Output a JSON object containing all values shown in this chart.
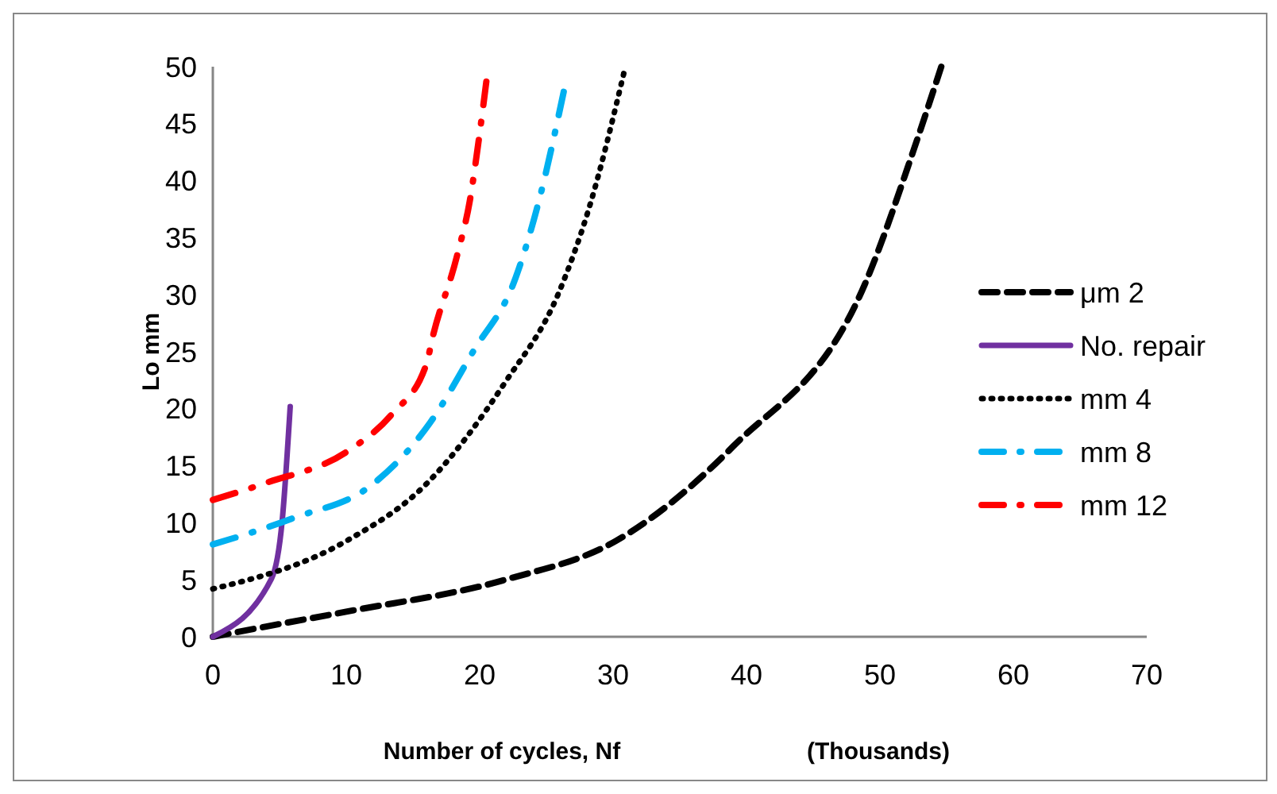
{
  "chart_data": {
    "type": "line",
    "xlabel": "Number of cycles, Nf",
    "ylabel": "Lo mm",
    "annotations": [
      "(Thousands)"
    ],
    "xlim": [
      0,
      70
    ],
    "xticks": [
      0,
      10,
      20,
      30,
      40,
      50,
      60,
      70
    ],
    "ylim": [
      0,
      50
    ],
    "yticks": [
      0,
      5,
      10,
      15,
      20,
      25,
      30,
      35,
      40,
      45,
      50
    ],
    "grid": false,
    "legend": "right",
    "marker": "none",
    "series": [
      {
        "name": "μm 2",
        "color": "#000000",
        "line_style": "dashed",
        "x": [
          0,
          4,
          10,
          21.9,
          30.2,
          39,
          48.9,
          52.5,
          54.6
        ],
        "values": [
          0,
          0.9,
          2.2,
          5,
          8.4,
          16.7,
          31,
          42.6,
          50
        ]
      },
      {
        "name": "No. repair",
        "color": "#7030a0",
        "line_style": "solid",
        "x": [
          0,
          4.4,
          5.2,
          5.8
        ],
        "values": [
          0,
          5.1,
          10.2,
          20.2
        ]
      },
      {
        "name": "mm 4",
        "color": "#000000",
        "line_style": "dotted",
        "x": [
          0,
          10,
          16,
          21.9,
          25.9,
          28.3,
          30.8
        ],
        "values": [
          4.2,
          8.4,
          13.4,
          22.3,
          30.1,
          38,
          49.4
        ]
      },
      {
        "name": "mm 8",
        "color": "#00b0f0",
        "line_style": "dashdot",
        "x": [
          0,
          6,
          12,
          16.3,
          19.5,
          22.7,
          24.5,
          26.3
        ],
        "values": [
          8.1,
          10.4,
          13.4,
          18.8,
          25,
          31.5,
          38.5,
          47.8
        ]
      },
      {
        "name": "mm 12",
        "color": "#ff0000",
        "line_style": "dashdot",
        "x": [
          0,
          4,
          10,
          13.4,
          16,
          16.5,
          18.3,
          19.3,
          19.9,
          20.5
        ],
        "values": [
          12,
          13.5,
          16.2,
          19.5,
          23.9,
          26.4,
          33.4,
          38.5,
          43.3,
          48.7
        ]
      }
    ]
  }
}
